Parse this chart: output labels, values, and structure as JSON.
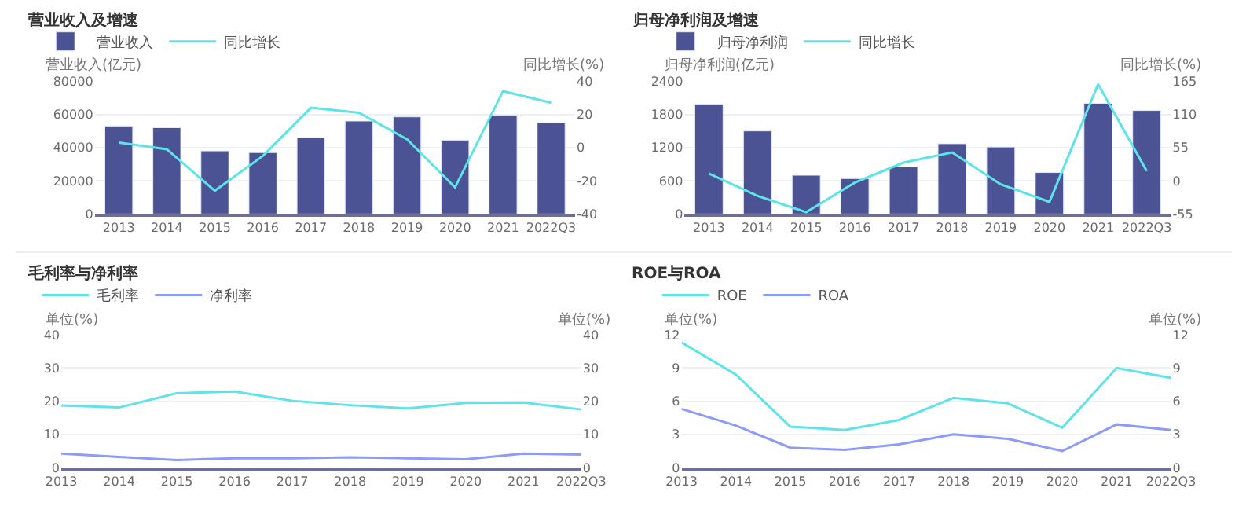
{
  "chart_data": [
    {
      "type": "bar",
      "title": "营业收入及增速",
      "ylabel": "营业收入(亿元)",
      "y2label": "同比增长(%)",
      "categories": [
        "2013",
        "2014",
        "2015",
        "2016",
        "2017",
        "2018",
        "2019",
        "2020",
        "2021",
        "2022Q3"
      ],
      "series": [
        {
          "name": "营业收入",
          "color": "#4b5394",
          "values": [
            53000,
            52000,
            38000,
            37000,
            46000,
            56000,
            58500,
            44500,
            59500,
            55000
          ]
        },
        {
          "name": "同比增长",
          "type": "line",
          "axis": "y2",
          "color": "#5ee3e8",
          "values": [
            3,
            -1,
            -26,
            -5,
            24,
            21,
            5,
            -24,
            34,
            27
          ]
        }
      ],
      "ylim": [
        0,
        80000
      ],
      "yticks": [
        0,
        20000,
        40000,
        60000,
        80000
      ],
      "y2lim": [
        -40,
        40
      ],
      "y2ticks": [
        -40,
        -20,
        0,
        20,
        40
      ],
      "grid": "y",
      "legend": "top left",
      "marker": "none"
    },
    {
      "type": "bar",
      "title": "归母净利润及增速",
      "ylabel": "归母净利润(亿元)",
      "y2label": "同比增长(%)",
      "categories": [
        "2013",
        "2014",
        "2015",
        "2016",
        "2017",
        "2018",
        "2019",
        "2020",
        "2021",
        "2022Q3"
      ],
      "series": [
        {
          "name": "归母净利润",
          "color": "#4b5394",
          "values": [
            1980,
            1500,
            700,
            640,
            850,
            1270,
            1210,
            750,
            2000,
            1870
          ]
        },
        {
          "name": "同比增长",
          "type": "line",
          "axis": "y2",
          "color": "#5ee3e8",
          "values": [
            12,
            -25,
            -52,
            -3,
            30,
            47,
            -6,
            -35,
            160,
            16
          ]
        }
      ],
      "ylim": [
        0,
        2400
      ],
      "yticks": [
        0,
        600,
        1200,
        1800,
        2400
      ],
      "y2lim": [
        -55,
        165
      ],
      "y2ticks": [
        -55,
        0,
        55,
        110,
        165
      ],
      "grid": "y",
      "legend": "top left",
      "marker": "none"
    },
    {
      "type": "line",
      "title": "毛利率与净利率",
      "ylabel": "单位(%)",
      "y2label": "单位(%)",
      "categories": [
        "2013",
        "2014",
        "2015",
        "2016",
        "2017",
        "2018",
        "2019",
        "2020",
        "2021",
        "2022Q3"
      ],
      "series": [
        {
          "name": "毛利率",
          "color": "#5ee3e8",
          "values": [
            18.7,
            18.1,
            22.4,
            22.9,
            20.1,
            18.8,
            17.8,
            19.5,
            19.6,
            17.5
          ]
        },
        {
          "name": "净利率",
          "axis": "y2",
          "color": "#8d9bf8",
          "values": [
            4.2,
            3.2,
            2.3,
            2.8,
            2.8,
            3.1,
            2.8,
            2.5,
            4.2,
            3.9
          ]
        }
      ],
      "ylim": [
        0,
        40
      ],
      "yticks": [
        0,
        10,
        20,
        30,
        40
      ],
      "y2lim": [
        0,
        40
      ],
      "y2ticks": [
        0,
        10,
        20,
        30,
        40
      ],
      "grid": "y",
      "legend": "top left",
      "marker": "none"
    },
    {
      "type": "line",
      "title": "ROE与ROA",
      "ylabel": "单位(%)",
      "y2label": "单位(%)",
      "categories": [
        "2013",
        "2014",
        "2015",
        "2016",
        "2017",
        "2018",
        "2019",
        "2020",
        "2021",
        "2022Q3"
      ],
      "series": [
        {
          "name": "ROE",
          "color": "#5ee3e8",
          "values": [
            11.3,
            8.4,
            3.7,
            3.4,
            4.3,
            6.3,
            5.8,
            3.6,
            9.0,
            8.1
          ]
        },
        {
          "name": "ROA",
          "axis": "y2",
          "color": "#8d9bf8",
          "values": [
            5.3,
            3.8,
            1.8,
            1.6,
            2.1,
            3.0,
            2.6,
            1.5,
            3.9,
            3.4
          ]
        }
      ],
      "ylim": [
        0,
        12
      ],
      "yticks": [
        0,
        3,
        6,
        9,
        12
      ],
      "y2lim": [
        0,
        12
      ],
      "y2ticks": [
        0,
        3,
        6,
        9,
        12
      ],
      "grid": "y",
      "legend": "top left",
      "marker": "none"
    }
  ]
}
